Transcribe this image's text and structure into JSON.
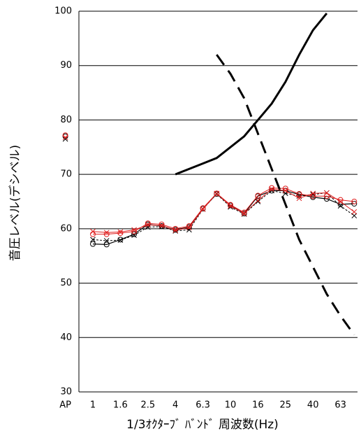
{
  "chart_data": {
    "type": "line",
    "y_label": "音圧レベル(デシベル)",
    "x_label": "1/3ｵｸﾀｰﾌﾞ ﾊﾞﾝﾄﾞ 周波数(Hz)",
    "categories": [
      "AP",
      null,
      "1",
      null,
      "1.6",
      null,
      "2.5",
      null,
      "4",
      null,
      "6.3",
      null,
      "10",
      null,
      "16",
      null,
      "25",
      null,
      "40",
      null,
      "63",
      null
    ],
    "ylim": [
      30,
      100
    ],
    "yticks": [
      30,
      40,
      50,
      60,
      70,
      80,
      90,
      100
    ],
    "grid": true,
    "series": [
      {
        "color": "#000000",
        "marker": "circle",
        "dash": false,
        "width": 1.2,
        "values": [
          77,
          null,
          57.2,
          57.1,
          58,
          59,
          60.8,
          60.5,
          59.8,
          60.3,
          63.7,
          66.4,
          64.3,
          62.8,
          66,
          67,
          67,
          66.3,
          65.8,
          65.5,
          64.5,
          64.6
        ]
      },
      {
        "color": "#000000",
        "marker": "x",
        "dash": true,
        "width": 1,
        "values": [
          76.5,
          null,
          58,
          57.8,
          57.9,
          58.8,
          60.3,
          60.4,
          59.6,
          59.8,
          63.6,
          66.4,
          64,
          62.7,
          65,
          67,
          66.5,
          66,
          66.3,
          66.6,
          64.2,
          62.4
        ]
      },
      {
        "color": "#e02020",
        "marker": "circle",
        "dash": false,
        "width": 1,
        "values": [
          77.2,
          null,
          59,
          59,
          59.2,
          59.5,
          61,
          60.8,
          60,
          60.5,
          63.8,
          66.5,
          64.4,
          63,
          66.1,
          67.5,
          67.4,
          66.4,
          66,
          66,
          65.3,
          65
        ]
      },
      {
        "color": "#e02020",
        "marker": "x",
        "dash": false,
        "width": 1,
        "values": [
          76.8,
          null,
          59.5,
          59.3,
          59.4,
          59.8,
          60.7,
          60.6,
          59.7,
          60.2,
          63.6,
          66.5,
          64.2,
          62.8,
          65.2,
          67.3,
          67,
          65.6,
          66.5,
          66.6,
          65,
          63.1
        ]
      },
      {
        "color": "#000000",
        "marker": "none",
        "dash": false,
        "width": 3,
        "values": [
          null,
          null,
          null,
          null,
          null,
          null,
          null,
          null,
          70,
          71,
          72,
          73,
          75,
          77,
          80,
          83,
          87,
          92,
          96.5,
          99.6,
          null,
          null
        ]
      },
      {
        "color": "#000000",
        "marker": "none",
        "dash": true,
        "width": 3,
        "values": [
          null,
          null,
          null,
          null,
          null,
          null,
          null,
          null,
          null,
          null,
          null,
          92,
          88.5,
          84,
          77.5,
          71,
          64.5,
          58,
          53,
          48,
          44,
          40.5
        ]
      }
    ]
  }
}
